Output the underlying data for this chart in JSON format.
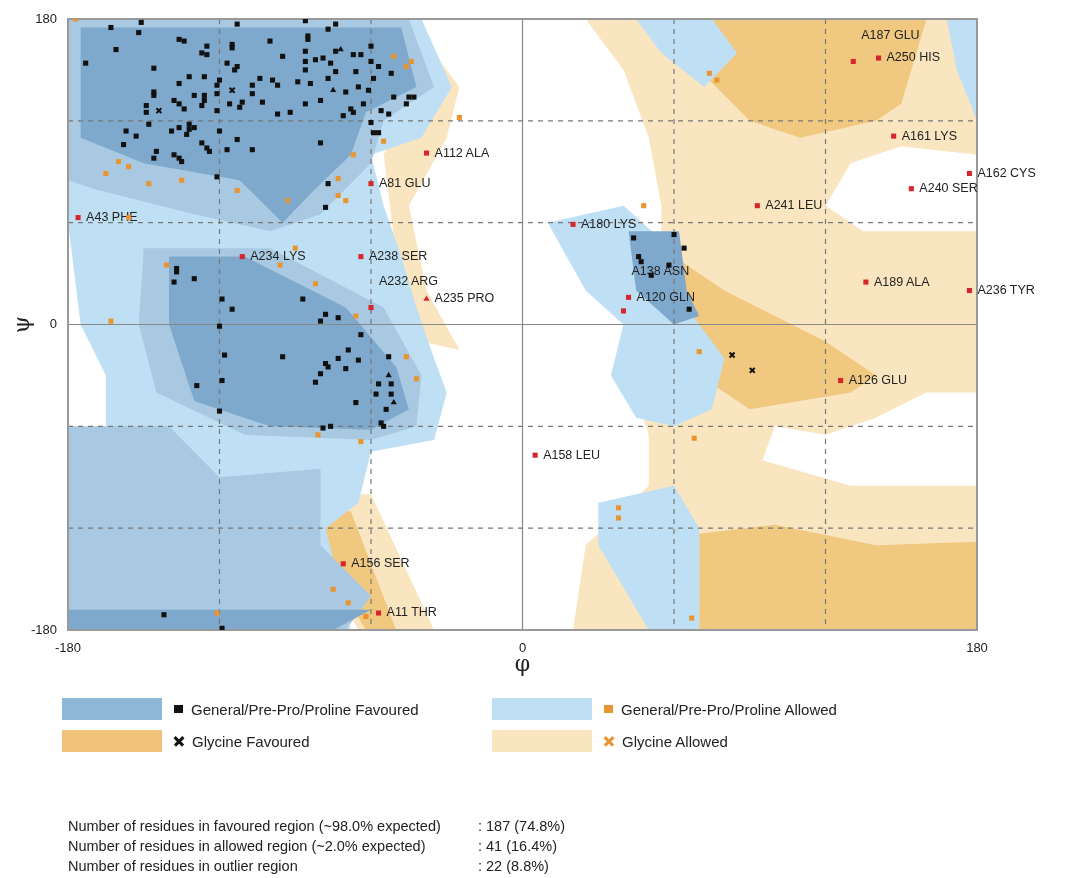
{
  "chart_data": {
    "type": "scatter",
    "xlabel": "φ",
    "ylabel": "ψ",
    "xlim": [
      -180,
      180
    ],
    "ylim": [
      -180,
      180
    ],
    "xticks": [
      -180,
      {
        "value": -120,
        "label": null
      },
      {
        "value": -60,
        "label": null
      },
      0,
      {
        "value": 60,
        "label": null
      },
      {
        "value": 120,
        "label": null
      },
      180
    ],
    "yticks": [
      -180,
      {
        "value": -120,
        "label": null
      },
      {
        "value": -60,
        "label": null
      },
      0,
      {
        "value": 60,
        "label": null
      },
      {
        "value": 120,
        "label": null
      },
      180
    ],
    "grid": true,
    "legend": "bottom",
    "series": [
      {
        "name": "General/Pre-Pro/Proline Favoured",
        "color": "#111111",
        "marker": "square",
        "x": [
          -163,
          -151,
          -152,
          -173,
          -161,
          -146,
          -136,
          -134,
          -125,
          -127,
          -125,
          -132,
          -126,
          -136,
          -146,
          -146,
          -149,
          -149,
          -138,
          -136,
          -134,
          -130,
          -126,
          -126,
          -127,
          -121,
          -120,
          -121,
          -117,
          -113,
          -114,
          -115,
          -115,
          -113,
          -100,
          -104,
          -99,
          -97,
          -107,
          -107,
          -111,
          -116,
          -121,
          -112,
          -103,
          -97,
          -92,
          -95,
          -86,
          -86,
          -85,
          -85,
          -77,
          -74,
          -86,
          -86,
          -82,
          -79,
          -76,
          -74,
          -77,
          -84,
          -89,
          -74,
          -67,
          -64,
          -60,
          -60,
          -57,
          -52,
          -59,
          -65,
          -61,
          -70,
          -80,
          -86,
          -68,
          -67,
          -71,
          -63,
          -56,
          -53,
          -51,
          -46,
          -45,
          -43,
          -60,
          -59,
          -57,
          -80,
          -66,
          -157,
          -158,
          -153,
          -148,
          -145,
          -146,
          -139,
          -136,
          -132,
          -132,
          -133,
          -130,
          -127,
          -125,
          -124,
          -120,
          -113,
          -117,
          -107,
          -138,
          -136,
          -135,
          -121,
          -77,
          -78,
          -137,
          -137,
          -138,
          -130,
          -119,
          -115,
          -87,
          -78,
          -80,
          -73,
          -120,
          -64,
          -69,
          -73,
          -65,
          -53,
          -95,
          -118,
          -78,
          -77,
          -70,
          -80,
          -82,
          -119,
          -129,
          -57,
          -52,
          -58,
          -52,
          -66,
          -54,
          -120,
          -56,
          -55,
          -79,
          -76,
          -142,
          -119,
          44,
          60,
          64,
          46,
          47,
          58,
          51,
          66
        ],
        "values": [
          175,
          178,
          172,
          154,
          162,
          151,
          168,
          167,
          164,
          160,
          159,
          146,
          146,
          142,
          137,
          135,
          129,
          125,
          132,
          130,
          127,
          135,
          135,
          132,
          129,
          136,
          144,
          141,
          154,
          152,
          150,
          165,
          163,
          177,
          167,
          145,
          144,
          141,
          141,
          136,
          131,
          130,
          126,
          128,
          131,
          124,
          125,
          158,
          161,
          179,
          170,
          168,
          174,
          177,
          155,
          150,
          156,
          157,
          154,
          149,
          145,
          142,
          143,
          161,
          159,
          159,
          164,
          155,
          152,
          148,
          145,
          140,
          138,
          137,
          132,
          130,
          127,
          125,
          123,
          130,
          126,
          124,
          134,
          130,
          134,
          134,
          119,
          113,
          113,
          107,
          149,
          114,
          106,
          111,
          118,
          102,
          98,
          114,
          116,
          118,
          115,
          112,
          116,
          107,
          104,
          102,
          114,
          109,
          103,
          103,
          100,
          98,
          96,
          87,
          83,
          69,
          33,
          31,
          25,
          27,
          15,
          9,
          15,
          6,
          2,
          4,
          -1,
          -6,
          -15,
          -20,
          -21,
          -19,
          -19,
          -18,
          -23,
          -25,
          -26,
          -29,
          -34,
          -33,
          -36,
          -35,
          -35,
          -41,
          -41,
          -46,
          -50,
          -51,
          -58,
          -60,
          -61,
          -60,
          -171,
          -179,
          51,
          53,
          45,
          40,
          37,
          35,
          29,
          9
        ]
      },
      {
        "color": "#111111",
        "marker": "triangle",
        "x": [
          -72,
          -75,
          -53,
          -51
        ],
        "values": [
          162,
          138,
          -30,
          -46
        ]
      },
      {
        "name": "General/Pre-Pro/Proline Allowed",
        "color": "#e8952f",
        "marker": "square",
        "x": [
          -177,
          -51,
          -44,
          -46,
          -25,
          -55,
          -67,
          -160,
          -156,
          -165,
          -148,
          -135,
          -113,
          -73,
          -73,
          -70,
          -156,
          -90,
          -96,
          -141,
          -82,
          -66,
          -163,
          -46,
          -42,
          -81,
          -64,
          -75,
          -69,
          -62,
          -121,
          74,
          77,
          48,
          70,
          68,
          38,
          38,
          67
        ],
        "values": [
          180,
          158,
          155,
          152,
          122,
          108,
          100,
          96,
          93,
          89,
          83,
          85,
          79,
          86,
          76,
          73,
          63,
          45,
          35,
          35,
          24,
          5,
          2,
          -19,
          -32,
          -65,
          -69,
          -156,
          -164,
          -172,
          -170,
          148,
          144,
          70,
          -16,
          -67,
          -108,
          -114,
          -173
        ]
      },
      {
        "name": "Glycine Favoured",
        "color": "#111111",
        "marker": "cross",
        "x": [
          -115,
          -144,
          83,
          91
        ],
        "values": [
          138,
          126,
          -18,
          -27
        ]
      },
      {
        "name": "Glycine Allowed",
        "color": "#e8952f",
        "marker": "cross",
        "x": [
          -93
        ],
        "values": [
          73
        ]
      },
      {
        "color": "#d7262b",
        "marker": "square",
        "x": [
          -38,
          -60,
          -176,
          -111,
          -64,
          -60,
          -71,
          -57,
          131,
          141,
          147,
          177,
          154,
          93,
          20,
          136,
          177,
          42,
          40,
          126,
          5
        ],
        "values": [
          101,
          83,
          63,
          40,
          40,
          10,
          -141,
          -170,
          155,
          157,
          111,
          89,
          80,
          70,
          59,
          25,
          20,
          16,
          8,
          -33,
          -77
        ]
      },
      {
        "color": "#d7262b",
        "marker": "triangle",
        "x": [
          -38
        ],
        "values": [
          15
        ]
      }
    ],
    "annotations": [
      {
        "text": "A112 ALA",
        "x": -38,
        "y": 101
      },
      {
        "text": "A81 GLU",
        "x": -60,
        "y": 83
      },
      {
        "text": "A43 PHE",
        "x": -176,
        "y": 63
      },
      {
        "text": "A234 LYS",
        "x": -111,
        "y": 40
      },
      {
        "text": "A238 SER",
        "x": -64,
        "y": 40
      },
      {
        "text": "A235 PRO",
        "x": -38,
        "y": 15
      },
      {
        "text": "A232 ARG",
        "x": -60,
        "y": 10
      },
      {
        "text": "A156 SER",
        "x": -71,
        "y": -141
      },
      {
        "text": "A11 THR",
        "x": -57,
        "y": -170
      },
      {
        "text": "A250 HIS",
        "x": 141,
        "y": 157
      },
      {
        "text": "A187 GLU",
        "x": 131,
        "y": 155
      },
      {
        "text": "A161 LYS",
        "x": 147,
        "y": 111
      },
      {
        "text": "A162 CYS",
        "x": 177,
        "y": 89
      },
      {
        "text": "A240 SER",
        "x": 154,
        "y": 80
      },
      {
        "text": "A241 LEU",
        "x": 93,
        "y": 70
      },
      {
        "text": "A180 LYS",
        "x": 20,
        "y": 59
      },
      {
        "text": "A189 ALA",
        "x": 136,
        "y": 25
      },
      {
        "text": "A236 TYR",
        "x": 177,
        "y": 20
      },
      {
        "text": "A120 GLN",
        "x": 42,
        "y": 16
      },
      {
        "text": "A138 ASN",
        "x": 40,
        "y": 8
      },
      {
        "text": "A126 GLU",
        "x": 126,
        "y": -33
      },
      {
        "text": "A158 LEU",
        "x": 5,
        "y": -77
      },
      "Number of residues in favoured region (~98.0% expected) : 187 (74.8%)",
      "Number of residues in allowed region (~2.0% expected) : 41 (16.4%)",
      "Number of residues in outlier region : 22 (8.8%)"
    ]
  }
}
